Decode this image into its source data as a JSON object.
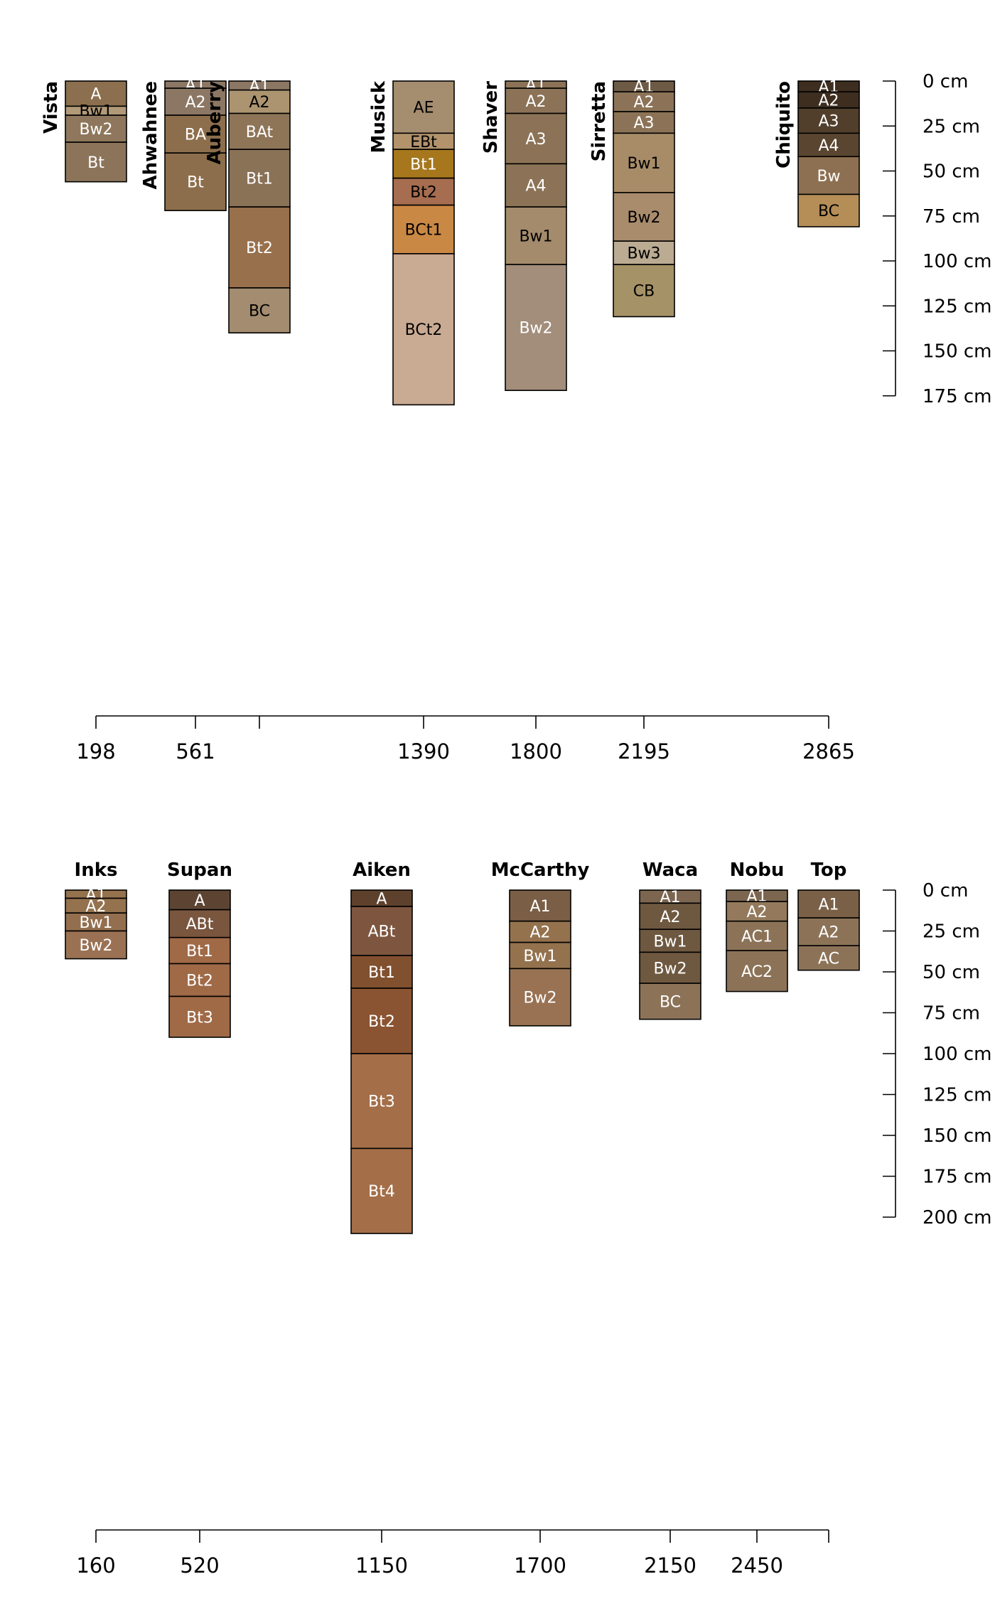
{
  "chart_data": [
    {
      "type": "soil-profile-sketch",
      "depth_axis": {
        "range_cm": [
          0,
          175
        ],
        "ticks": [
          0,
          25,
          50,
          75,
          100,
          125,
          150,
          175
        ],
        "unit": "cm"
      },
      "x_axis": {
        "ticks": [
          198,
          561,
          1390,
          1800,
          2195,
          2865
        ],
        "tick_labels": [
          "198",
          "561",
          "1390",
          "1800",
          "2195",
          "2865"
        ]
      },
      "profiles": [
        {
          "name": "Vista",
          "x": 198,
          "name_orientation": "vertical",
          "horizons": [
            {
              "name": "A",
              "top": 0,
              "bottom": 14,
              "color": "#8B6F4E",
              "text_color": "#ffffff"
            },
            {
              "name": "Bw1",
              "top": 14,
              "bottom": 19,
              "color": "#B19A78",
              "text_color": "#000000"
            },
            {
              "name": "Bw2",
              "top": 19,
              "bottom": 34,
              "color": "#8E775C",
              "text_color": "#ffffff"
            },
            {
              "name": "Bt",
              "top": 34,
              "bottom": 56,
              "color": "#8C745B",
              "text_color": "#ffffff"
            }
          ]
        },
        {
          "name": "Ahwahnee",
          "x": 561,
          "name_orientation": "vertical",
          "horizons": [
            {
              "name": "A1",
              "top": 0,
              "bottom": 4,
              "color": "#8C7765",
              "text_color": "#ffffff"
            },
            {
              "name": "A2",
              "top": 4,
              "bottom": 19,
              "color": "#8C7765",
              "text_color": "#ffffff"
            },
            {
              "name": "BA",
              "top": 19,
              "bottom": 40,
              "color": "#8D6E4C",
              "text_color": "#ffffff"
            },
            {
              "name": "Bt",
              "top": 40,
              "bottom": 72,
              "color": "#8D6E4C",
              "text_color": "#ffffff"
            }
          ]
        },
        {
          "name": "Auberry",
          "x": 790,
          "name_orientation": "vertical",
          "horizons": [
            {
              "name": "A1",
              "top": 0,
              "bottom": 5,
              "color": "#8C7765",
              "text_color": "#ffffff"
            },
            {
              "name": "A2",
              "top": 5,
              "bottom": 18,
              "color": "#AC9470",
              "text_color": "#000000"
            },
            {
              "name": "BAt",
              "top": 18,
              "bottom": 38,
              "color": "#8E7558",
              "text_color": "#ffffff"
            },
            {
              "name": "Bt1",
              "top": 38,
              "bottom": 70,
              "color": "#8A7257",
              "text_color": "#ffffff"
            },
            {
              "name": "Bt2",
              "top": 70,
              "bottom": 115,
              "color": "#98704C",
              "text_color": "#ffffff"
            },
            {
              "name": "BC",
              "top": 115,
              "bottom": 140,
              "color": "#A38C6F",
              "text_color": "#000000"
            }
          ]
        },
        {
          "name": "Musick",
          "x": 1390,
          "name_orientation": "vertical",
          "horizons": [
            {
              "name": "AE",
              "top": 0,
              "bottom": 29,
              "color": "#A58D6F",
              "text_color": "#000000"
            },
            {
              "name": "EBt",
              "top": 29,
              "bottom": 38,
              "color": "#B2936C",
              "text_color": "#000000"
            },
            {
              "name": "Bt1",
              "top": 38,
              "bottom": 54,
              "color": "#A6771D",
              "text_color": "#ffffff"
            },
            {
              "name": "Bt2",
              "top": 54,
              "bottom": 69,
              "color": "#A66D50",
              "text_color": "#000000"
            },
            {
              "name": "BCt1",
              "top": 69,
              "bottom": 96,
              "color": "#C98844",
              "text_color": "#000000"
            },
            {
              "name": "BCt2",
              "top": 96,
              "bottom": 180,
              "color": "#C9AA92",
              "text_color": "#000000"
            }
          ]
        },
        {
          "name": "Shaver",
          "x": 1800,
          "name_orientation": "vertical",
          "horizons": [
            {
              "name": "A1",
              "top": 0,
              "bottom": 4,
              "color": "#8C7357",
              "text_color": "#ffffff"
            },
            {
              "name": "A2",
              "top": 4,
              "bottom": 18,
              "color": "#8C7357",
              "text_color": "#ffffff"
            },
            {
              "name": "A3",
              "top": 18,
              "bottom": 46,
              "color": "#8C7357",
              "text_color": "#ffffff"
            },
            {
              "name": "A4",
              "top": 46,
              "bottom": 70,
              "color": "#8C7357",
              "text_color": "#ffffff"
            },
            {
              "name": "Bw1",
              "top": 70,
              "bottom": 102,
              "color": "#A48B6C",
              "text_color": "#000000"
            },
            {
              "name": "Bw2",
              "top": 102,
              "bottom": 172,
              "color": "#A28E7B",
              "text_color": "#ffffff"
            }
          ]
        },
        {
          "name": "Sirretta",
          "x": 2195,
          "name_orientation": "vertical",
          "horizons": [
            {
              "name": "A1",
              "top": 0,
              "bottom": 6,
              "color": "#6E5B45",
              "text_color": "#ffffff"
            },
            {
              "name": "A2",
              "top": 6,
              "bottom": 17,
              "color": "#8C7357",
              "text_color": "#ffffff"
            },
            {
              "name": "A3",
              "top": 17,
              "bottom": 29,
              "color": "#8C7357",
              "text_color": "#ffffff"
            },
            {
              "name": "Bw1",
              "top": 29,
              "bottom": 62,
              "color": "#A88C68",
              "text_color": "#000000"
            },
            {
              "name": "Bw2",
              "top": 62,
              "bottom": 89,
              "color": "#A88C6C",
              "text_color": "#000000"
            },
            {
              "name": "Bw3",
              "top": 89,
              "bottom": 102,
              "color": "#BBAB92",
              "text_color": "#000000"
            },
            {
              "name": "CB",
              "top": 102,
              "bottom": 131,
              "color": "#A69267",
              "text_color": "#000000"
            }
          ]
        },
        {
          "name": "Chiquito",
          "x": 2865,
          "name_orientation": "vertical",
          "horizons": [
            {
              "name": "A1",
              "top": 0,
              "bottom": 6,
              "color": "#3D2E20",
              "text_color": "#ffffff"
            },
            {
              "name": "A2",
              "top": 6,
              "bottom": 15,
              "color": "#3D2E20",
              "text_color": "#ffffff"
            },
            {
              "name": "A3",
              "top": 15,
              "bottom": 29,
              "color": "#513F2C",
              "text_color": "#ffffff"
            },
            {
              "name": "A4",
              "top": 29,
              "bottom": 42,
              "color": "#5A4530",
              "text_color": "#ffffff"
            },
            {
              "name": "Bw",
              "top": 42,
              "bottom": 63,
              "color": "#8D7051",
              "text_color": "#ffffff"
            },
            {
              "name": "BC",
              "top": 63,
              "bottom": 81,
              "color": "#B48D57",
              "text_color": "#000000"
            }
          ]
        }
      ]
    },
    {
      "type": "soil-profile-sketch",
      "depth_axis": {
        "range_cm": [
          0,
          200
        ],
        "ticks": [
          0,
          25,
          50,
          75,
          100,
          125,
          150,
          175,
          200
        ],
        "unit": "cm"
      },
      "x_axis": {
        "ticks": [
          160,
          520,
          1150,
          1700,
          2150,
          2450
        ],
        "tick_labels": [
          "160",
          "520",
          "1150",
          "1700",
          "2150",
          "2450"
        ]
      },
      "profiles": [
        {
          "name": "Inks",
          "x": 160,
          "name_orientation": "horizontal",
          "horizons": [
            {
              "name": "A1",
              "top": 0,
              "bottom": 5,
              "color": "#94724E",
              "text_color": "#ffffff"
            },
            {
              "name": "A2",
              "top": 5,
              "bottom": 14,
              "color": "#94724E",
              "text_color": "#ffffff"
            },
            {
              "name": "Bw1",
              "top": 14,
              "bottom": 25,
              "color": "#936F4F",
              "text_color": "#ffffff"
            },
            {
              "name": "Bw2",
              "top": 25,
              "bottom": 42,
              "color": "#9A7253",
              "text_color": "#ffffff"
            }
          ]
        },
        {
          "name": "Supan",
          "x": 520,
          "name_orientation": "horizontal",
          "horizons": [
            {
              "name": "A",
              "top": 0,
              "bottom": 12,
              "color": "#5D4432",
              "text_color": "#ffffff"
            },
            {
              "name": "ABt",
              "top": 12,
              "bottom": 29,
              "color": "#7A563F",
              "text_color": "#ffffff"
            },
            {
              "name": "Bt1",
              "top": 29,
              "bottom": 45,
              "color": "#A06A47",
              "text_color": "#ffffff"
            },
            {
              "name": "Bt2",
              "top": 45,
              "bottom": 65,
              "color": "#A06A47",
              "text_color": "#ffffff"
            },
            {
              "name": "Bt3",
              "top": 65,
              "bottom": 90,
              "color": "#A06A47",
              "text_color": "#ffffff"
            }
          ]
        },
        {
          "name": "Aiken",
          "x": 1150,
          "name_orientation": "horizontal",
          "horizons": [
            {
              "name": "A",
              "top": 0,
              "bottom": 10,
              "color": "#5E412D",
              "text_color": "#ffffff"
            },
            {
              "name": "ABt",
              "top": 10,
              "bottom": 40,
              "color": "#7E5640",
              "text_color": "#ffffff"
            },
            {
              "name": "Bt1",
              "top": 40,
              "bottom": 60,
              "color": "#81502F",
              "text_color": "#ffffff"
            },
            {
              "name": "Bt2",
              "top": 60,
              "bottom": 100,
              "color": "#8A5432",
              "text_color": "#ffffff"
            },
            {
              "name": "Bt3",
              "top": 100,
              "bottom": 158,
              "color": "#A46E48",
              "text_color": "#ffffff"
            },
            {
              "name": "Bt4",
              "top": 158,
              "bottom": 210,
              "color": "#A46E48",
              "text_color": "#ffffff"
            }
          ]
        },
        {
          "name": "McCarthy",
          "x": 1700,
          "name_orientation": "horizontal",
          "horizons": [
            {
              "name": "A1",
              "top": 0,
              "bottom": 19,
              "color": "#7A5E45",
              "text_color": "#ffffff"
            },
            {
              "name": "A2",
              "top": 19,
              "bottom": 32,
              "color": "#94724E",
              "text_color": "#ffffff"
            },
            {
              "name": "Bw1",
              "top": 32,
              "bottom": 48,
              "color": "#94724E",
              "text_color": "#ffffff"
            },
            {
              "name": "Bw2",
              "top": 48,
              "bottom": 83,
              "color": "#987253",
              "text_color": "#ffffff"
            }
          ]
        },
        {
          "name": "Waca",
          "x": 2150,
          "name_orientation": "horizontal",
          "horizons": [
            {
              "name": "A1",
              "top": 0,
              "bottom": 8,
              "color": "#7C6650",
              "text_color": "#ffffff"
            },
            {
              "name": "A2",
              "top": 8,
              "bottom": 24,
              "color": "#6E5840",
              "text_color": "#ffffff"
            },
            {
              "name": "Bw1",
              "top": 24,
              "bottom": 38,
              "color": "#6E5840",
              "text_color": "#ffffff"
            },
            {
              "name": "Bw2",
              "top": 38,
              "bottom": 57,
              "color": "#6E5840",
              "text_color": "#ffffff"
            },
            {
              "name": "BC",
              "top": 57,
              "bottom": 79,
              "color": "#8C7358",
              "text_color": "#ffffff"
            }
          ]
        },
        {
          "name": "Nobu",
          "x": 2450,
          "name_orientation": "horizontal",
          "horizons": [
            {
              "name": "A1",
              "top": 0,
              "bottom": 7,
              "color": "#7C6650",
              "text_color": "#ffffff"
            },
            {
              "name": "A2",
              "top": 7,
              "bottom": 19,
              "color": "#94795C",
              "text_color": "#ffffff"
            },
            {
              "name": "AC1",
              "top": 19,
              "bottom": 37,
              "color": "#8C7358",
              "text_color": "#ffffff"
            },
            {
              "name": "AC2",
              "top": 37,
              "bottom": 62,
              "color": "#8C7358",
              "text_color": "#ffffff"
            }
          ]
        },
        {
          "name": "Top",
          "x": 2700,
          "name_orientation": "horizontal",
          "horizons": [
            {
              "name": "A1",
              "top": 0,
              "bottom": 17,
              "color": "#7A6047",
              "text_color": "#ffffff"
            },
            {
              "name": "A2",
              "top": 17,
              "bottom": 34,
              "color": "#8C7358",
              "text_color": "#ffffff"
            },
            {
              "name": "AC",
              "top": 34,
              "bottom": 49,
              "color": "#8C7358",
              "text_color": "#ffffff"
            }
          ]
        }
      ]
    }
  ]
}
